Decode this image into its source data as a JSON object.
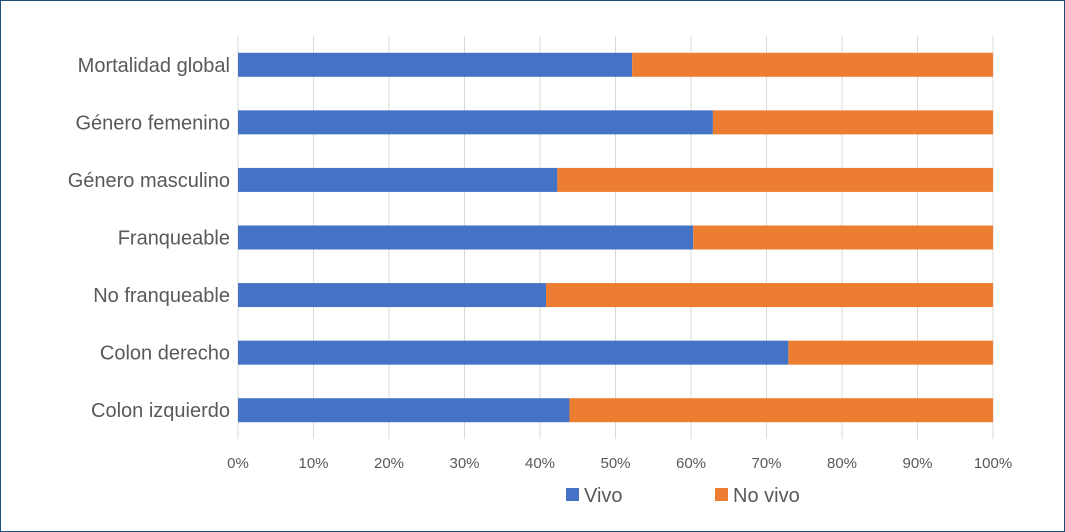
{
  "chart_data": {
    "type": "bar",
    "orientation": "horizontal",
    "stacked": "percent",
    "title": "",
    "xlabel": "",
    "ylabel": "",
    "xlim": [
      0,
      100
    ],
    "grid": true,
    "legend_position": "bottom",
    "categories": [
      "Mortalidad global",
      "Género femenino",
      "Género masculino",
      "Franqueable",
      "No franqueable",
      "Colon derecho",
      "Colon izquierdo"
    ],
    "tick_labels": [
      "0%",
      "10%",
      "20%",
      "30%",
      "40%",
      "50%",
      "60%",
      "70%",
      "80%",
      "90%",
      "100%"
    ],
    "series": [
      {
        "name": "Vivo",
        "color": "#4472c4",
        "values": [
          52.2,
          62.9,
          42.3,
          60.3,
          40.8,
          72.9,
          43.9
        ]
      },
      {
        "name": "No vivo",
        "color": "#ed7d31",
        "values": [
          47.8,
          37.1,
          57.7,
          39.7,
          59.2,
          27.1,
          56.1
        ]
      }
    ]
  }
}
